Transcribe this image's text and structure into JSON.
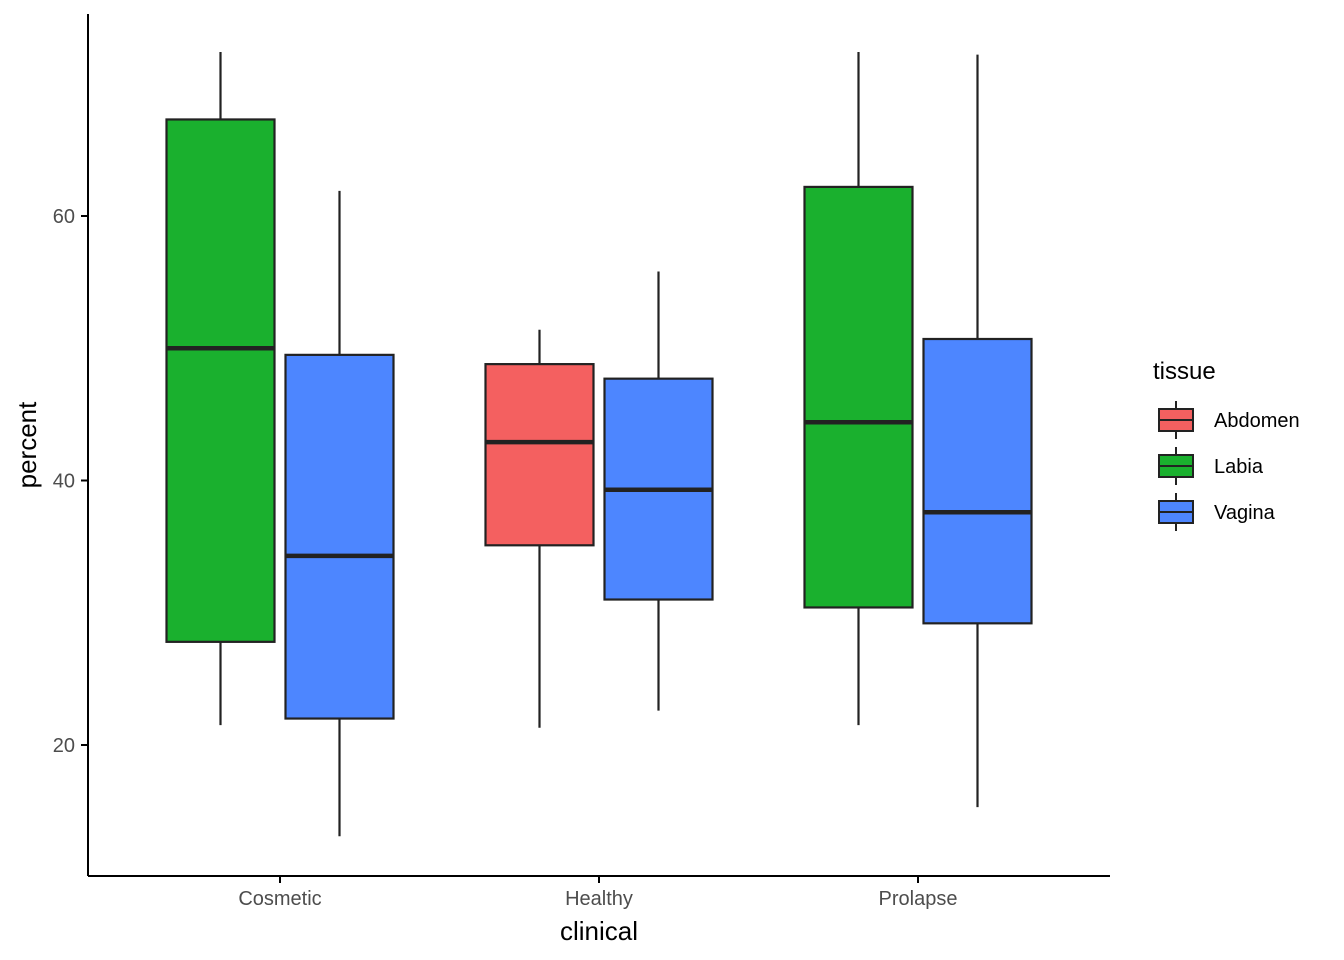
{
  "chart_data": {
    "type": "boxplot",
    "xlabel": "clinical",
    "ylabel": "percent",
    "categories": [
      "Cosmetic",
      "Healthy",
      "Prolapse"
    ],
    "y_ticks": [
      20,
      40,
      60
    ],
    "ylim": [
      10,
      75
    ],
    "legend": {
      "title": "tissue",
      "position": "right",
      "entries": [
        {
          "name": "Abdomen",
          "color": "#F46060"
        },
        {
          "name": "Labia",
          "color": "#1AB02E"
        },
        {
          "name": "Vagina",
          "color": "#4D86FF"
        }
      ]
    },
    "boxes": [
      {
        "category": "Cosmetic",
        "tissue": "Labia",
        "whisker_low": 21.5,
        "q1": 27.8,
        "median": 50.0,
        "q3": 67.3,
        "whisker_high": 72.4
      },
      {
        "category": "Cosmetic",
        "tissue": "Vagina",
        "whisker_low": 13.1,
        "q1": 22.0,
        "median": 34.3,
        "q3": 49.5,
        "whisker_high": 61.9
      },
      {
        "category": "Healthy",
        "tissue": "Abdomen",
        "whisker_low": 21.3,
        "q1": 35.1,
        "median": 42.9,
        "q3": 48.8,
        "whisker_high": 51.4
      },
      {
        "category": "Healthy",
        "tissue": "Vagina",
        "whisker_low": 22.6,
        "q1": 31.0,
        "median": 39.3,
        "q3": 47.7,
        "whisker_high": 55.8
      },
      {
        "category": "Prolapse",
        "tissue": "Labia",
        "whisker_low": 21.5,
        "q1": 30.4,
        "median": 44.4,
        "q3": 62.2,
        "whisker_high": 72.4
      },
      {
        "category": "Prolapse",
        "tissue": "Vagina",
        "whisker_low": 15.3,
        "q1": 29.2,
        "median": 37.6,
        "q3": 50.7,
        "whisker_high": 72.2
      }
    ]
  }
}
